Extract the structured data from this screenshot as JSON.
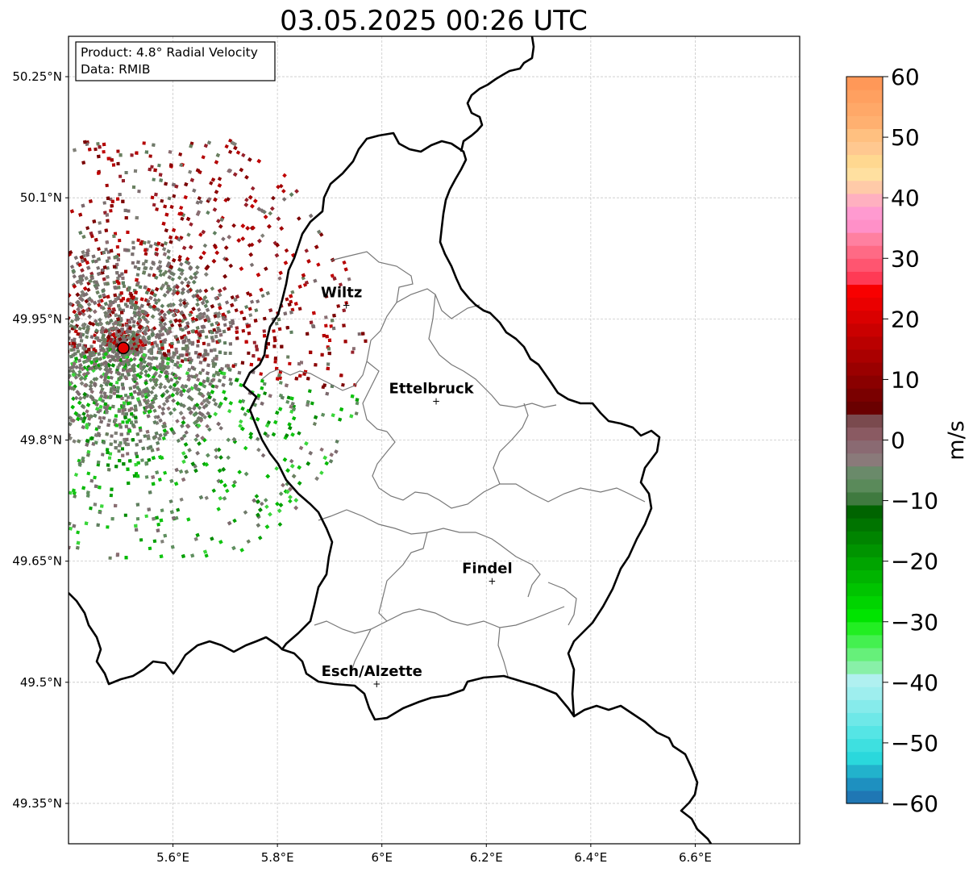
{
  "title": "03.05.2025 00:26 UTC",
  "info_box": {
    "product": "Product: 4.8° Radial Velocity",
    "data": "Data: RMIB"
  },
  "map": {
    "lon_range": [
      5.4,
      6.8
    ],
    "lat_range": [
      49.3,
      50.3
    ],
    "x_ticks": [
      "5.6°E",
      "5.8°E",
      "6°E",
      "6.2°E",
      "6.4°E",
      "6.6°E"
    ],
    "x_tick_values": [
      5.6,
      5.8,
      6.0,
      6.2,
      6.4,
      6.6
    ],
    "y_ticks": [
      "49.35°N",
      "49.5°N",
      "49.65°N",
      "49.8°N",
      "49.95°N",
      "50.1°N",
      "50.25°N"
    ],
    "y_tick_values": [
      49.35,
      49.5,
      49.65,
      49.8,
      49.95,
      50.1,
      50.25
    ],
    "gridlines": true,
    "radar_site": {
      "lon": 5.505,
      "lat": 49.914,
      "color": "#e00000"
    },
    "cities": [
      {
        "name": "Wiltz",
        "lon": 5.932,
        "lat": 49.967
      },
      {
        "name": "Ettelbruck",
        "lon": 6.104,
        "lat": 49.848
      },
      {
        "name": "Findel",
        "lon": 6.211,
        "lat": 49.625
      },
      {
        "name": "Esch/Alzette",
        "lon": 5.99,
        "lat": 49.498
      }
    ]
  },
  "colorbar": {
    "label": "m/s",
    "min": -60,
    "max": 60,
    "ticks": [
      "60",
      "50",
      "40",
      "30",
      "20",
      "10",
      "0",
      "−10",
      "−20",
      "−30",
      "−40",
      "−50",
      "−60"
    ],
    "tick_values": [
      60,
      50,
      40,
      30,
      20,
      10,
      0,
      -10,
      -20,
      -30,
      -40,
      -50,
      -60
    ],
    "colors": [
      "#1f77b4",
      "#1e90c0",
      "#22b2cc",
      "#2ad8dc",
      "#3ee0e0",
      "#55e5e5",
      "#6ee8e8",
      "#86ebeb",
      "#9eeeee",
      "#b0f0f0",
      "#88f0a8",
      "#66f07a",
      "#44f050",
      "#22ee22",
      "#00e400",
      "#00d400",
      "#00c400",
      "#00b400",
      "#00a400",
      "#009400",
      "#008400",
      "#007400",
      "#006400",
      "#3f7a3f",
      "#5a8a5a",
      "#6a8a6a",
      "#8a7a7a",
      "#8a6a72",
      "#8a5a62",
      "#7a4a4e",
      "#6a0000",
      "#7a0000",
      "#8a0000",
      "#9a0000",
      "#aa0000",
      "#ba0000",
      "#ca0000",
      "#da0000",
      "#ea0000",
      "#f80000",
      "#ff3a55",
      "#ff5570",
      "#ff6a85",
      "#ff80a0",
      "#ff90c8",
      "#ff9ad0",
      "#ffb0c0",
      "#ffcaa8",
      "#ffe0a0",
      "#ffd890",
      "#ffc890",
      "#ffc080",
      "#ffb070",
      "#ffa868",
      "#ffa060",
      "#ff9858"
    ]
  }
}
